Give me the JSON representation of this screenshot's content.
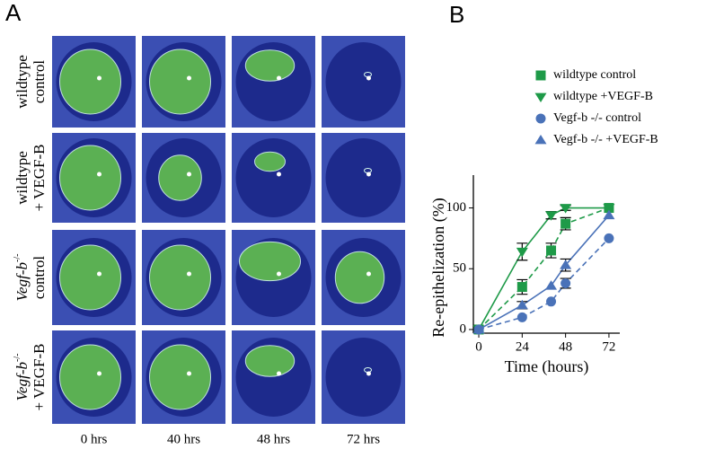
{
  "panel_a": {
    "letter": "A",
    "rows": [
      {
        "line1": "wildtype",
        "line2": "control"
      },
      {
        "line1": "wildtype",
        "line2": "+ VEGF-B"
      },
      {
        "line1": "Vegf-b",
        "sup": "-/-",
        "line2": "control"
      },
      {
        "line1": "Vegf-b",
        "sup": "-/-",
        "line2": "+ VEGF-B"
      }
    ],
    "columns": [
      "0 hrs",
      "40 hrs",
      "48 hrs",
      "72 hrs"
    ]
  },
  "chart_data": {
    "type": "line",
    "panel_letter": "B",
    "x_label": "Time (hours)",
    "y_label": "Re-epithelization (%)",
    "x": [
      0,
      24,
      40,
      48,
      72
    ],
    "xlim": [
      -3,
      78
    ],
    "xticks": [
      0,
      24,
      48,
      72
    ],
    "ylim": [
      -3,
      127
    ],
    "yticks": [
      0,
      50,
      100
    ],
    "series": [
      {
        "name": "wildtype control",
        "color": "#1e9a48",
        "marker": "square",
        "dashed": true,
        "values": [
          0,
          35,
          65,
          87,
          100
        ],
        "errors": [
          null,
          6,
          6,
          5,
          null
        ]
      },
      {
        "name": "wildtype +VEGF-B",
        "color": "#1e9a48",
        "marker": "triangle-down",
        "dashed": false,
        "values": [
          0,
          64,
          94,
          100,
          100
        ],
        "errors": [
          null,
          7,
          3,
          2,
          null
        ]
      },
      {
        "name": "Vegf-b -/- control",
        "color": "#4a72b8",
        "marker": "circle",
        "dashed": true,
        "values": [
          0,
          10,
          23,
          38,
          75
        ],
        "errors": [
          null,
          null,
          null,
          4,
          null
        ]
      },
      {
        "name": "Vegf-b -/- +VEGF-B",
        "color": "#4a72b8",
        "marker": "triangle-up",
        "dashed": false,
        "values": [
          0,
          20,
          36,
          53,
          94
        ],
        "errors": [
          null,
          3,
          null,
          5,
          null
        ]
      }
    ]
  }
}
